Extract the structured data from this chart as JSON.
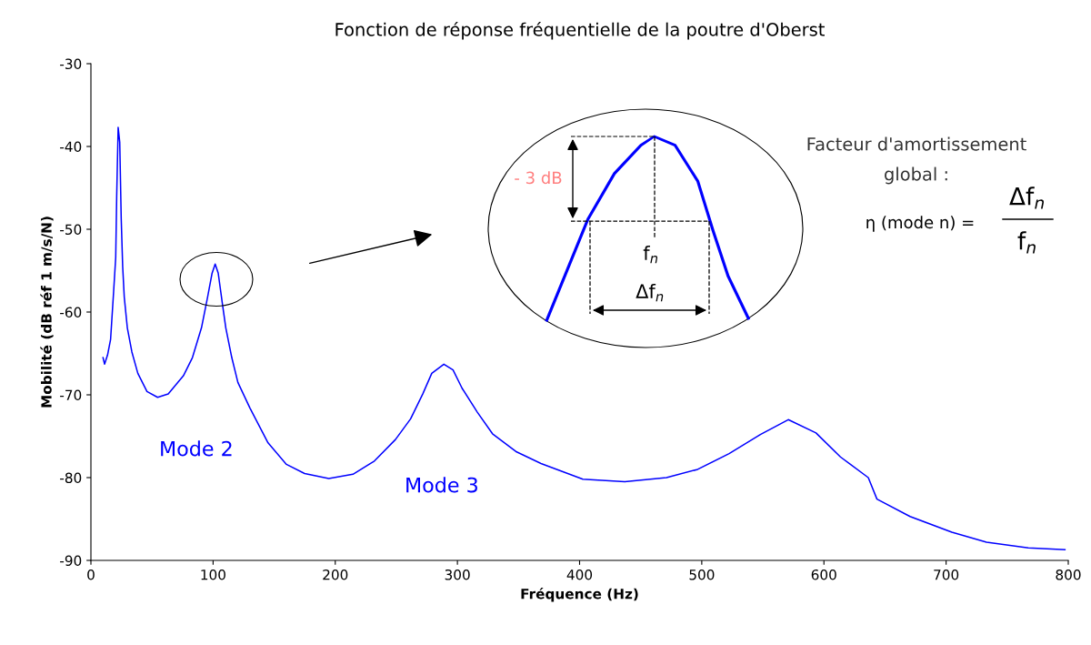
{
  "chart_data": {
    "type": "line",
    "title": "Fonction de réponse fréquentielle de la poutre d'Oberst",
    "xlabel": "Fréquence (Hz)",
    "ylabel": "Mobilité (dB réf 1 m/s/N)",
    "xlim": [
      0,
      800
    ],
    "xticks": [
      0,
      100,
      200,
      300,
      400,
      500,
      600,
      700,
      800
    ],
    "ylim": [
      -90,
      -30
    ],
    "yticks": [
      -90,
      -80,
      -70,
      -60,
      -50,
      -40,
      -30
    ],
    "grid": false,
    "legend": false,
    "marker": "none",
    "line_style": "solid",
    "series": [
      {
        "color": "#0000ff",
        "x": [
          9.9,
          11.2,
          13.6,
          16.1,
          18.6,
          20.3,
          21.1,
          22.3,
          23.6,
          24.8,
          26,
          27.3,
          29.8,
          33.5,
          38.4,
          45.9,
          54.6,
          63.3,
          75.7,
          83.1,
          90.5,
          95.5,
          99.2,
          101.7,
          104.2,
          107.9,
          110.4,
          115.3,
          120.3,
          130.2,
          145,
          160,
          174.9,
          194.7,
          214.5,
          232,
          249.3,
          261.7,
          271.6,
          279,
          288.9,
          296.4,
          303.8,
          316.3,
          328.7,
          348.5,
          368.4,
          402.7,
          437,
          471.1,
          496.7,
          522.4,
          548,
          570.8,
          593.5,
          613.5,
          636.3,
          643.4,
          670.5,
          704.7,
          733.1,
          767.3,
          797.3
        ],
        "values": [
          -65.5,
          -66.3,
          -65.2,
          -63.3,
          -57.5,
          -53.4,
          -46.1,
          -37.7,
          -39.5,
          -48.7,
          -54.5,
          -58.2,
          -61.9,
          -64.8,
          -67.4,
          -69.6,
          -70.3,
          -69.9,
          -67.7,
          -65.5,
          -61.9,
          -58.2,
          -55.3,
          -54.2,
          -55.3,
          -59.3,
          -61.9,
          -65.5,
          -68.5,
          -71.6,
          -75.8,
          -78.4,
          -79.5,
          -80.1,
          -79.6,
          -78.0,
          -75.4,
          -72.9,
          -69.9,
          -67.4,
          -66.3,
          -67.0,
          -69.2,
          -72.1,
          -74.7,
          -76.9,
          -78.3,
          -80.2,
          -80.5,
          -80.0,
          -79.0,
          -77.1,
          -74.8,
          -73.0,
          -74.6,
          -77.5,
          -80.0,
          -82.6,
          -84.7,
          -86.6,
          -87.8,
          -88.5,
          -88.7
        ]
      }
    ],
    "annotations": [
      "Mode 2",
      "Mode 3",
      "- 3 dB",
      "f$_{n}$",
      "Δf$_{n}$",
      "Facteur d'amortissement",
      "global :",
      "η (mode n) =",
      "Δf$_{n}$",
      "f$_{n}$"
    ]
  }
}
